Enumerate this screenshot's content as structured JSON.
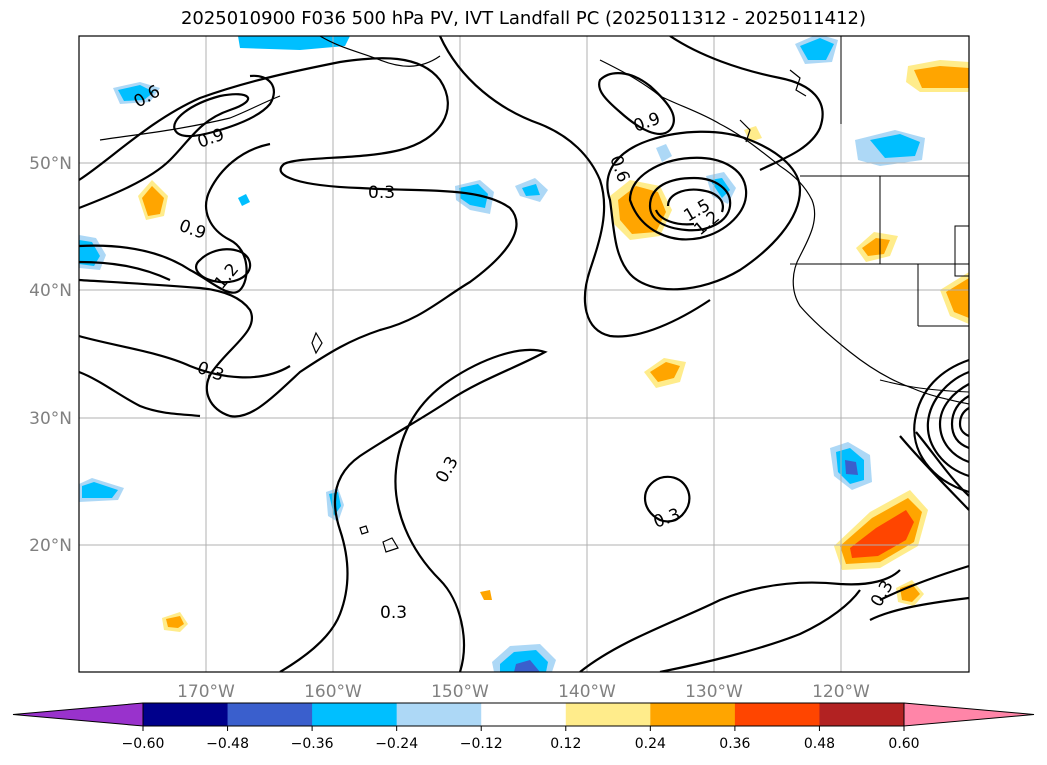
{
  "title": "2025010900 F036 500 hPa PV, IVT Landfall PC (2025011312 - 2025011412)",
  "map": {
    "lon_range": [
      -180,
      -110
    ],
    "lat_range": [
      10,
      60
    ],
    "lon_ticks": [
      {
        "value": -170,
        "label": "170°W"
      },
      {
        "value": -160,
        "label": "160°W"
      },
      {
        "value": -150,
        "label": "150°W"
      },
      {
        "value": -140,
        "label": "140°W"
      },
      {
        "value": -130,
        "label": "130°W"
      },
      {
        "value": -120,
        "label": "120°W"
      }
    ],
    "lat_ticks": [
      {
        "value": 20,
        "label": "20°N"
      },
      {
        "value": 30,
        "label": "30°N"
      },
      {
        "value": 40,
        "label": "40°N"
      },
      {
        "value": 50,
        "label": "50°N"
      }
    ],
    "grid": true,
    "contour_labels": [
      "0.3",
      "0.3",
      "0.3",
      "0.3",
      "0.3",
      "0.3",
      "0.6",
      "0.6",
      "0.9",
      "0.9",
      "0.9",
      "1.2",
      "1.2",
      "1.5"
    ]
  },
  "colorbar": {
    "boundaries": [
      -0.6,
      -0.48,
      -0.36,
      -0.24,
      -0.12,
      0.12,
      0.24,
      0.36,
      0.48,
      0.6
    ],
    "labels": [
      "−0.60",
      "−0.48",
      "−0.36",
      "−0.24",
      "−0.12",
      "0.12",
      "0.24",
      "0.36",
      "0.48",
      "0.60"
    ],
    "colors": [
      "#9932cc",
      "#00008b",
      "#3a5fcd",
      "#00bfff",
      "#add8f6",
      "#ffffff",
      "#ffec8b",
      "#ffa500",
      "#ff4500",
      "#b22222",
      "#ff85a8"
    ],
    "extend": "both"
  }
}
